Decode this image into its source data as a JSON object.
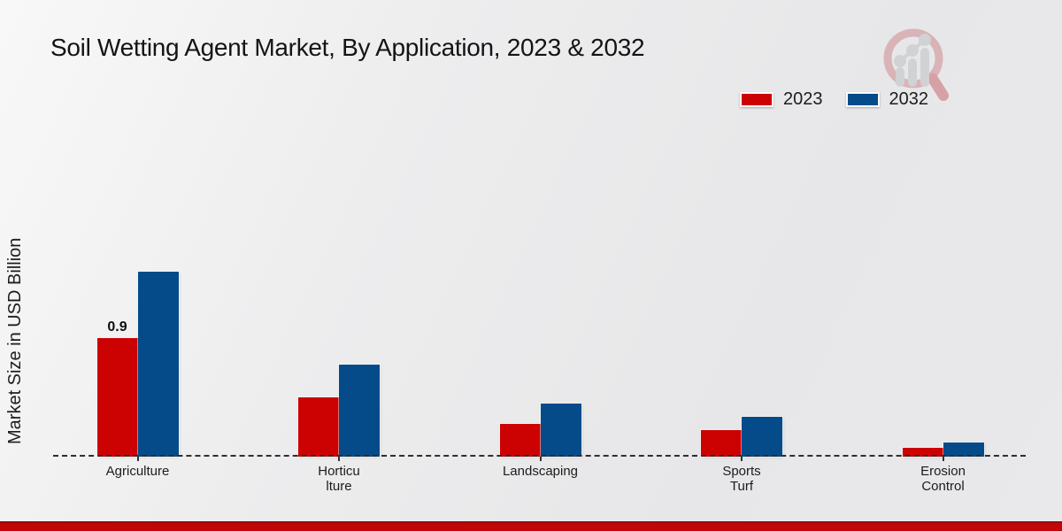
{
  "header": {
    "title": "Soil Wetting Agent Market, By Application, 2023 & 2032"
  },
  "legend": [
    {
      "label": "2023",
      "color": "#cc0202"
    },
    {
      "label": "2032",
      "color": "#054b8a"
    }
  ],
  "annotation": {
    "value": "0.9",
    "category": "Agriculture",
    "series": "2023"
  },
  "chart_data": {
    "type": "bar",
    "title": "Soil Wetting Agent Market, By Application, 2023 & 2032",
    "categories": [
      "Agriculture",
      "Horticulture",
      "Landscaping",
      "Sports Turf",
      "Erosion Control"
    ],
    "category_display": [
      [
        "Agriculture"
      ],
      [
        "Horticu",
        "lture"
      ],
      [
        "Landscaping"
      ],
      [
        "Sports",
        "Turf"
      ],
      [
        "Erosion",
        "Control"
      ]
    ],
    "series": [
      {
        "name": "2023",
        "color": "#cc0202",
        "values": [
          0.9,
          0.45,
          0.25,
          0.2,
          0.07
        ]
      },
      {
        "name": "2032",
        "color": "#054b8a",
        "values": [
          1.4,
          0.7,
          0.4,
          0.3,
          0.11
        ]
      }
    ],
    "xlabel": "",
    "ylabel": "Market Size in USD Billion",
    "ylim": [
      0,
      1.5
    ],
    "grid": false,
    "y_axis_ticks_visible": false,
    "baseline_style": "dashed",
    "legend_position": "top-right",
    "data_labels_shown": [
      {
        "category": "Agriculture",
        "series": "2023",
        "text": "0.9"
      }
    ]
  },
  "logo": {
    "name": "market-research-magnifier-logo"
  },
  "footer": {
    "color": "#c00606"
  }
}
